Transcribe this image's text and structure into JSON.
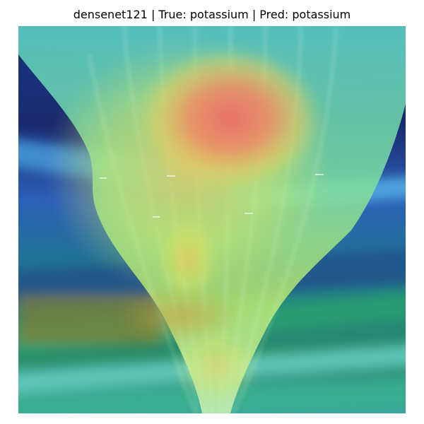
{
  "figure": {
    "title": "densenet121 | True: potassium | Pred: potassium"
  },
  "image": {
    "subject": "leaf",
    "overlay": "heatmap",
    "colors": {
      "background_dark": "#1a2a6e",
      "background_mid": "#1f7a8c",
      "leaf_cyan": "#5fe0c8",
      "leaf_green": "#9be36a",
      "heat_yellow": "#e8e85a",
      "heat_orange": "#f2a45a",
      "heat_red": "#ee6a6a"
    }
  }
}
